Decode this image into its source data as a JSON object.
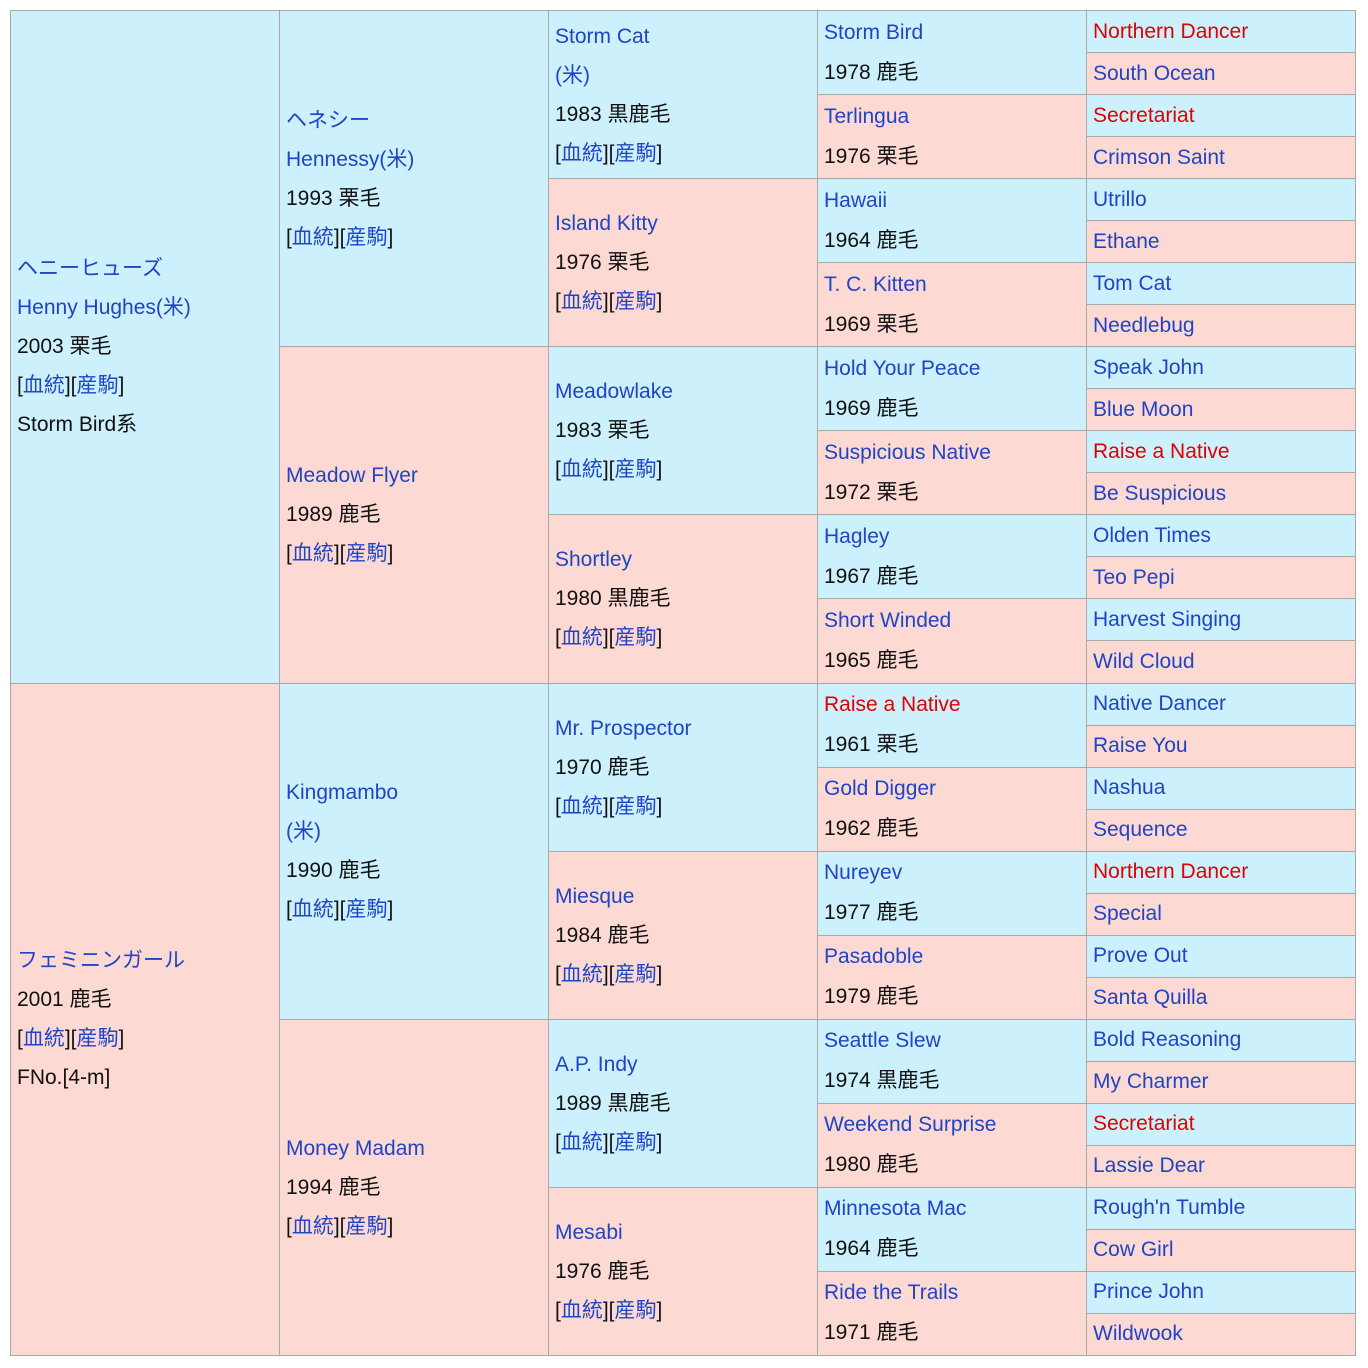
{
  "generations": [
    [
      {
        "name": [
          "ヘニーヒューズ",
          "Henny Hughes(米)"
        ],
        "info": "2003 栗毛",
        "links": [
          "[",
          "血統",
          "][",
          "産駒",
          "]"
        ],
        "note": "Storm Bird系"
      },
      {
        "name": [
          "フェミニンガール"
        ],
        "info": "2001 鹿毛",
        "links": [
          "[",
          "血統",
          "][",
          "産駒",
          "]"
        ],
        "note": "FNo.[4-m]"
      }
    ],
    [
      {
        "name": [
          "ヘネシー",
          "Hennessy(米)"
        ],
        "info": "1993 栗毛",
        "links": [
          "[",
          "血統",
          "][",
          "産駒",
          "]"
        ]
      },
      {
        "name": [
          "Meadow Flyer"
        ],
        "info": "1989 鹿毛",
        "links": [
          "[",
          "血統",
          "][",
          "産駒",
          "]"
        ]
      },
      {
        "name": [
          "Kingmambo",
          "(米)"
        ],
        "info": "1990 鹿毛",
        "links": [
          "[",
          "血統",
          "][",
          "産駒",
          "]"
        ]
      },
      {
        "name": [
          "Money Madam"
        ],
        "info": "1994 鹿毛",
        "links": [
          "[",
          "血統",
          "][",
          "産駒",
          "]"
        ]
      }
    ],
    [
      {
        "name": [
          "Storm Cat",
          "(米)"
        ],
        "info": "1983 黒鹿毛",
        "links": [
          "[",
          "血統",
          "][",
          "産駒",
          "]"
        ]
      },
      {
        "name": [
          "Island Kitty"
        ],
        "info": "1976 栗毛",
        "links": [
          "[",
          "血統",
          "][",
          "産駒",
          "]"
        ]
      },
      {
        "name": [
          "Meadowlake"
        ],
        "info": "1983 栗毛",
        "links": [
          "[",
          "血統",
          "][",
          "産駒",
          "]"
        ]
      },
      {
        "name": [
          "Shortley"
        ],
        "info": "1980 黒鹿毛",
        "links": [
          "[",
          "血統",
          "][",
          "産駒",
          "]"
        ]
      },
      {
        "name": [
          "Mr. Prospector"
        ],
        "info": "1970 鹿毛",
        "links": [
          "[",
          "血統",
          "][",
          "産駒",
          "]"
        ]
      },
      {
        "name": [
          "Miesque"
        ],
        "info": "1984 鹿毛",
        "links": [
          "[",
          "血統",
          "][",
          "産駒",
          "]"
        ]
      },
      {
        "name": [
          "A.P. Indy"
        ],
        "info": "1989 黒鹿毛",
        "links": [
          "[",
          "血統",
          "][",
          "産駒",
          "]"
        ]
      },
      {
        "name": [
          "Mesabi"
        ],
        "info": "1976 鹿毛",
        "links": [
          "[",
          "血統",
          "][",
          "産駒",
          "]"
        ]
      }
    ],
    [
      {
        "name": [
          "Storm Bird"
        ],
        "info": "1978 鹿毛"
      },
      {
        "name": [
          "Terlingua"
        ],
        "info": "1976 栗毛"
      },
      {
        "name": [
          "Hawaii"
        ],
        "info": "1964 鹿毛"
      },
      {
        "name": [
          "T. C. Kitten"
        ],
        "info": "1969 栗毛"
      },
      {
        "name": [
          "Hold Your Peace"
        ],
        "info": "1969 鹿毛"
      },
      {
        "name": [
          "Suspicious Native"
        ],
        "info": "1972 栗毛"
      },
      {
        "name": [
          "Hagley"
        ],
        "info": "1967 鹿毛"
      },
      {
        "name": [
          "Short Winded"
        ],
        "info": "1965 鹿毛"
      },
      {
        "name": [
          "Raise a Native"
        ],
        "info": "1961 栗毛",
        "color": "#e00000"
      },
      {
        "name": [
          "Gold Digger"
        ],
        "info": "1962 鹿毛"
      },
      {
        "name": [
          "Nureyev"
        ],
        "info": "1977 鹿毛"
      },
      {
        "name": [
          "Pasadoble"
        ],
        "info": "1979 鹿毛"
      },
      {
        "name": [
          "Seattle Slew"
        ],
        "info": "1974 黒鹿毛"
      },
      {
        "name": [
          "Weekend Surprise"
        ],
        "info": "1980 鹿毛"
      },
      {
        "name": [
          "Minnesota Mac"
        ],
        "info": "1964 鹿毛"
      },
      {
        "name": [
          "Ride the Trails"
        ],
        "info": "1971 鹿毛"
      }
    ],
    [
      {
        "name": [
          "Northern Dancer"
        ],
        "color": "#e00000"
      },
      {
        "name": [
          "South Ocean"
        ]
      },
      {
        "name": [
          "Secretariat"
        ],
        "color": "#e00000"
      },
      {
        "name": [
          "Crimson Saint"
        ]
      },
      {
        "name": [
          "Utrillo"
        ]
      },
      {
        "name": [
          "Ethane"
        ]
      },
      {
        "name": [
          "Tom Cat"
        ]
      },
      {
        "name": [
          "Needlebug"
        ]
      },
      {
        "name": [
          "Speak John"
        ]
      },
      {
        "name": [
          "Blue Moon"
        ]
      },
      {
        "name": [
          "Raise a Native"
        ],
        "color": "#e00000"
      },
      {
        "name": [
          "Be Suspicious"
        ]
      },
      {
        "name": [
          "Olden Times"
        ]
      },
      {
        "name": [
          "Teo Pepi"
        ]
      },
      {
        "name": [
          "Harvest Singing"
        ]
      },
      {
        "name": [
          "Wild Cloud"
        ]
      },
      {
        "name": [
          "Native Dancer"
        ]
      },
      {
        "name": [
          "Raise You"
        ]
      },
      {
        "name": [
          "Nashua"
        ]
      },
      {
        "name": [
          "Sequence"
        ]
      },
      {
        "name": [
          "Northern Dancer"
        ],
        "color": "#e00000"
      },
      {
        "name": [
          "Special"
        ]
      },
      {
        "name": [
          "Prove Out"
        ]
      },
      {
        "name": [
          "Santa Quilla"
        ]
      },
      {
        "name": [
          "Bold Reasoning"
        ]
      },
      {
        "name": [
          "My Charmer"
        ]
      },
      {
        "name": [
          "Secretariat"
        ],
        "color": "#e00000"
      },
      {
        "name": [
          "Lassie Dear"
        ]
      },
      {
        "name": [
          "Rough'n Tumble"
        ]
      },
      {
        "name": [
          "Cow Girl"
        ]
      },
      {
        "name": [
          "Prince John"
        ]
      },
      {
        "name": [
          "Wildwook"
        ]
      }
    ]
  ]
}
